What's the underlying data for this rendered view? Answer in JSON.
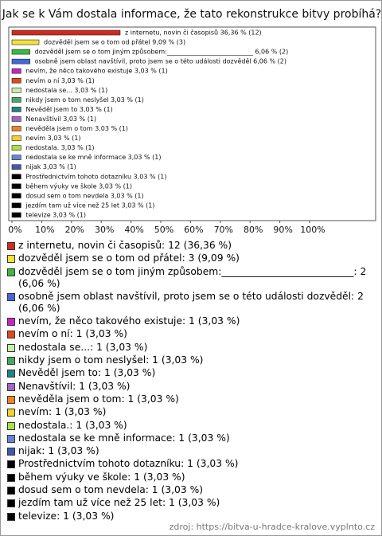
{
  "chart_data": {
    "type": "bar",
    "orientation": "horizontal",
    "title": "Jak se k Vám dostala informace, že tato rekonstrukce bitvy probíhá?",
    "values": [
      36.36,
      9.09,
      6.06,
      6.06,
      3.03,
      3.03,
      3.03,
      3.03,
      3.03,
      3.03,
      3.03,
      3.03,
      3.03,
      3.03,
      3.03,
      3.03,
      3.03,
      3.03,
      3.03,
      3.03
    ],
    "value_labels": [
      "z internetu, novin či časopisů 36,36 % (12)",
      "dozvěděl jsem se o tom od přátel 9,09 % (3)",
      "dozvěděl jsem se o tom jiným způsobem:___________________________ 6,06 % (2)",
      "osobně jsem oblast navštívil, proto jsem se o této události dozvěděl 6,06 % (2)",
      "nevím, že něco takového existuje 3,03 % (1)",
      "nevím o ní 3,03 % (1)",
      "nedostala se... 3,03 % (1)",
      "nikdy jsem o tom neslyšel 3,03 % (1)",
      "Nevěděl jsem to 3,03 % (1)",
      "Nenavštívil 3,03 % (1)",
      "nevěděla jsem o tom 3,03 % (1)",
      "nevím 3,03 % (1)",
      "nedostala. 3,03 % (1)",
      "nedostala se ke mně informace 3,03 % (1)",
      "nijak 3,03 % (1)",
      "Prostřednictvím tohoto dotazníku 3,03 % (1)",
      "během výuky ve škole 3,03 % (1)",
      "dosud sem o tom nevdela 3,03 % (1)",
      "jezdím tam už více než 25 let 3,03 % (1)",
      "televize 3,03 % (1)"
    ],
    "legend": [
      "z internetu, novin či časopisů: 12 (36,36 %)",
      "dozvěděl jsem se o tom od přátel: 3 (9,09 %)",
      "dozvěděl jsem se o tom jiným způsobem:___________________________: 2 (6,06 %)",
      "osobně jsem oblast navštívil, proto jsem se o této události dozvěděl: 2 (6,06 %)",
      "nevím, že něco takového existuje: 1 (3,03 %)",
      "nevím o ní: 1 (3,03 %)",
      "nedostala se...: 1 (3,03 %)",
      "nikdy jsem o tom neslyšel: 1 (3,03 %)",
      "Nevěděl jsem to: 1 (3,03 %)",
      "Nenavštívil: 1 (3,03 %)",
      "nevěděla jsem o tom: 1 (3,03 %)",
      "nevím: 1 (3,03 %)",
      "nedostala.: 1 (3,03 %)",
      "nedostala se ke mně informace: 1 (3,03 %)",
      "nijak: 1 (3,03 %)",
      "Prostřednictvím tohoto dotazníku: 1 (3,03 %)",
      "během výuky ve škole: 1 (3,03 %)",
      "dosud sem o tom nevdela: 1 (3,03 %)",
      "jezdím tam už více než 25 let: 1 (3,03 %)",
      "televize: 1 (3,03 %)"
    ],
    "colors": [
      "#d02a1e",
      "#f2e23a",
      "#3cb83c",
      "#4466d8",
      "#c624c6",
      "#e2481a",
      "#c4f0a4",
      "#44a862",
      "#218484",
      "#a464c4",
      "#f08424",
      "#f4d226",
      "#a4e444",
      "#6684d4",
      "#4058b0",
      "#000000",
      "#000000",
      "#000000",
      "#000000",
      "#000000"
    ],
    "xlim": [
      0,
      100
    ],
    "xticks": [
      {
        "value": 0,
        "label": "0%"
      },
      {
        "value": 10,
        "label": "10%"
      },
      {
        "value": 20,
        "label": "20%"
      },
      {
        "value": 30,
        "label": "30%"
      },
      {
        "value": 40,
        "label": "40%"
      },
      {
        "value": 50,
        "label": "50%"
      },
      {
        "value": 60,
        "label": "60%"
      },
      {
        "value": 70,
        "label": "70%"
      },
      {
        "value": 80,
        "label": "80%"
      },
      {
        "value": 90,
        "label": "90%"
      },
      {
        "value": 100,
        "label": "100%"
      }
    ],
    "source": "zdroj: https://bitva-u-hradce-kralove.vyplnto.cz"
  }
}
